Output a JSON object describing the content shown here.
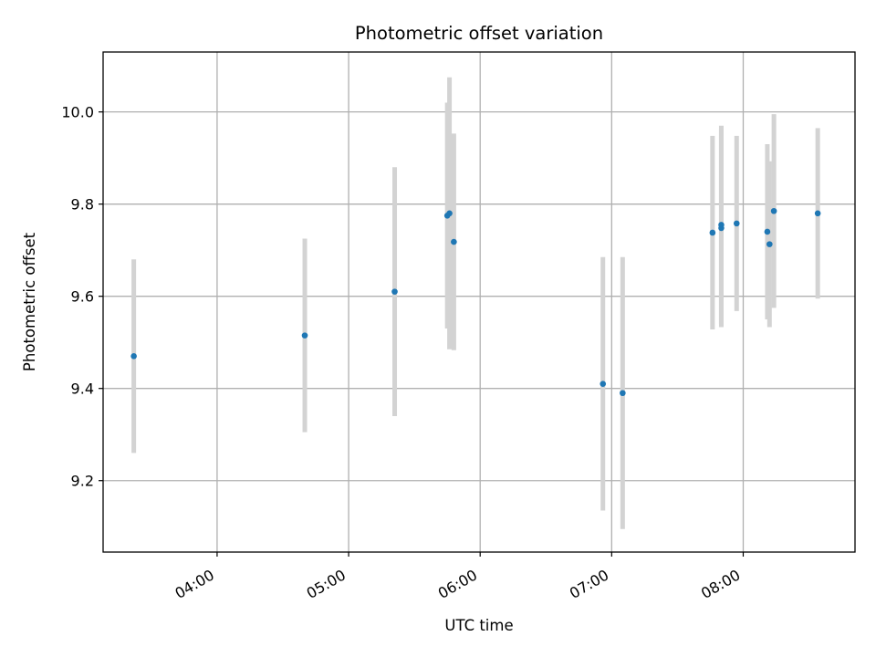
{
  "chart_data": {
    "type": "scatter",
    "title": "Photometric offset variation",
    "xlabel": "UTC time",
    "ylabel": "Photometric offset",
    "xlim": [
      "03:08",
      "08:51"
    ],
    "ylim": [
      9.045,
      10.13
    ],
    "x_ticks": [
      "04:00",
      "05:00",
      "06:00",
      "07:00",
      "08:00"
    ],
    "y_ticks": [
      9.2,
      9.4,
      9.6,
      9.8,
      10.0
    ],
    "grid": true,
    "colors": {
      "point": "#1f77b4",
      "errorbar": "#d3d3d3"
    },
    "points": [
      {
        "time": "03:22",
        "y": 9.47,
        "err": 0.21
      },
      {
        "time": "04:40",
        "y": 9.515,
        "err": 0.21
      },
      {
        "time": "05:21",
        "y": 9.61,
        "err": 0.27
      },
      {
        "time": "05:45",
        "y": 9.775,
        "err": 0.245
      },
      {
        "time": "05:46",
        "y": 9.78,
        "err": 0.295
      },
      {
        "time": "05:48",
        "y": 9.718,
        "err": 0.235
      },
      {
        "time": "06:56",
        "y": 9.41,
        "err": 0.275
      },
      {
        "time": "07:05",
        "y": 9.39,
        "err": 0.295
      },
      {
        "time": "07:46",
        "y": 9.738,
        "err": 0.21
      },
      {
        "time": "07:50",
        "y": 9.748,
        "err": 0.215
      },
      {
        "time": "07:50",
        "y": 9.755,
        "err": 0.215
      },
      {
        "time": "07:57",
        "y": 9.758,
        "err": 0.19
      },
      {
        "time": "08:11",
        "y": 9.74,
        "err": 0.19
      },
      {
        "time": "08:12",
        "y": 9.713,
        "err": 0.18
      },
      {
        "time": "08:14",
        "y": 9.785,
        "err": 0.21
      },
      {
        "time": "08:34",
        "y": 9.78,
        "err": 0.185
      }
    ]
  }
}
